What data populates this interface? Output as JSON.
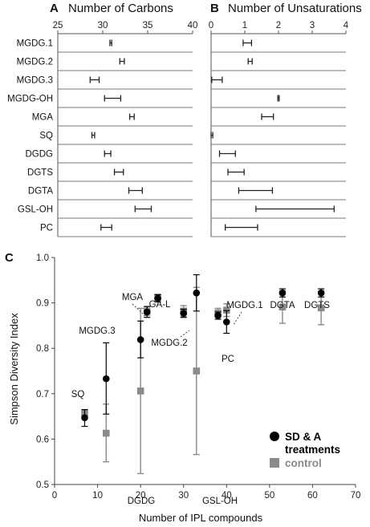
{
  "chart_data": [
    {
      "type": "range",
      "panel_label": "A",
      "title": "Number of Carbons",
      "xlim": [
        25,
        40
      ],
      "xticks": [
        "25",
        "30",
        "35",
        "40"
      ],
      "categories": [
        "MGDG.1",
        "MGDG.2",
        "MGDG.3",
        "MGDG-OH",
        "MGA",
        "SQ",
        "DGDG",
        "DGTS",
        "DGTA",
        "GSL-OH",
        "PC"
      ],
      "ranges": [
        [
          30.8,
          31.0
        ],
        [
          31.9,
          32.4
        ],
        [
          28.6,
          29.6
        ],
        [
          30.2,
          32.0
        ],
        [
          33.0,
          33.5
        ],
        [
          28.8,
          29.1
        ],
        [
          30.2,
          30.9
        ],
        [
          31.3,
          32.3
        ],
        [
          32.9,
          34.4
        ],
        [
          33.6,
          35.4
        ],
        [
          29.8,
          31.0
        ]
      ]
    },
    {
      "type": "range",
      "panel_label": "B",
      "title": "Number of Unsaturations",
      "xlim": [
        0,
        4
      ],
      "xticks": [
        "0",
        "1",
        "2",
        "3",
        "4"
      ],
      "categories": [
        "MGDG.1",
        "MGDG.2",
        "MGDG.3",
        "MGDG-OH",
        "MGA",
        "SQ",
        "DGDG",
        "DGTS",
        "DGTA",
        "GSL-OH",
        "PC"
      ],
      "ranges": [
        [
          0.95,
          1.2
        ],
        [
          1.1,
          1.22
        ],
        [
          0.02,
          0.33
        ],
        [
          1.98,
          2.02
        ],
        [
          1.5,
          1.85
        ],
        [
          0.0,
          0.05
        ],
        [
          0.25,
          0.72
        ],
        [
          0.5,
          0.98
        ],
        [
          0.82,
          1.82
        ],
        [
          1.33,
          3.65
        ],
        [
          0.42,
          1.38
        ]
      ]
    },
    {
      "type": "scatter",
      "panel_label": "C",
      "xlabel": "Number of IPL compounds",
      "ylabel": "Simpson Diversity Index",
      "xlim": [
        0,
        70
      ],
      "ylim": [
        0.5,
        1.0
      ],
      "xticks": [
        "0",
        "10",
        "20",
        "30",
        "40",
        "50",
        "60",
        "70"
      ],
      "yticks": [
        "0.5",
        "0.6",
        "0.7",
        "0.8",
        "0.9",
        "1.0"
      ],
      "legend": {
        "placement": "bottom-right",
        "treatment": "SD & A\ntreatments",
        "control": "control"
      },
      "series": [
        {
          "name": "SD & A treatments",
          "color": "#000000",
          "points": [
            {
              "x": 7,
              "y": 0.647,
              "lo": 0.628,
              "hi": 0.665
            },
            {
              "x": 12,
              "y": 0.733,
              "lo": 0.655,
              "hi": 0.812
            },
            {
              "x": 20,
              "y": 0.819,
              "lo": 0.779,
              "hi": 0.86
            },
            {
              "x": 21.5,
              "y": 0.88,
              "lo": 0.868,
              "hi": 0.892
            },
            {
              "x": 24,
              "y": 0.91,
              "lo": 0.902,
              "hi": 0.918
            },
            {
              "x": 30,
              "y": 0.877,
              "lo": 0.868,
              "hi": 0.886
            },
            {
              "x": 33,
              "y": 0.922,
              "lo": 0.882,
              "hi": 0.962
            },
            {
              "x": 38,
              "y": 0.872,
              "lo": 0.864,
              "hi": 0.88
            },
            {
              "x": 40,
              "y": 0.858,
              "lo": 0.833,
              "hi": 0.883
            },
            {
              "x": 53,
              "y": 0.922,
              "lo": 0.913,
              "hi": 0.931
            },
            {
              "x": 62,
              "y": 0.922,
              "lo": 0.913,
              "hi": 0.931
            }
          ]
        },
        {
          "name": "control",
          "color": "#8a8a8a",
          "points": [
            {
              "x": 7,
              "y": 0.657,
              "lo": 0.649,
              "hi": 0.665
            },
            {
              "x": 12,
              "y": 0.613,
              "lo": 0.55,
              "hi": 0.677
            },
            {
              "x": 20,
              "y": 0.706,
              "lo": 0.524,
              "hi": 0.888
            },
            {
              "x": 21.5,
              "y": 0.882,
              "lo": 0.872,
              "hi": 0.892
            },
            {
              "x": 24,
              "y": 0.912,
              "lo": 0.905,
              "hi": 0.919
            },
            {
              "x": 30,
              "y": 0.882,
              "lo": 0.87,
              "hi": 0.894
            },
            {
              "x": 33,
              "y": 0.75,
              "lo": 0.566,
              "hi": 0.934
            },
            {
              "x": 38,
              "y": 0.878,
              "lo": 0.868,
              "hi": 0.888
            },
            {
              "x": 40,
              "y": 0.884,
              "lo": 0.87,
              "hi": 0.898
            },
            {
              "x": 53,
              "y": 0.891,
              "lo": 0.855,
              "hi": 0.927
            },
            {
              "x": 62,
              "y": 0.889,
              "lo": 0.852,
              "hi": 0.926
            }
          ]
        }
      ],
      "annotations": [
        "SQ",
        "MGDG.3",
        "DGDG",
        "MGA",
        "GA-L",
        "MGDG.2",
        "GSL-OH",
        "MGDG.1",
        "PC",
        "DGTA",
        "DGTS"
      ]
    }
  ]
}
